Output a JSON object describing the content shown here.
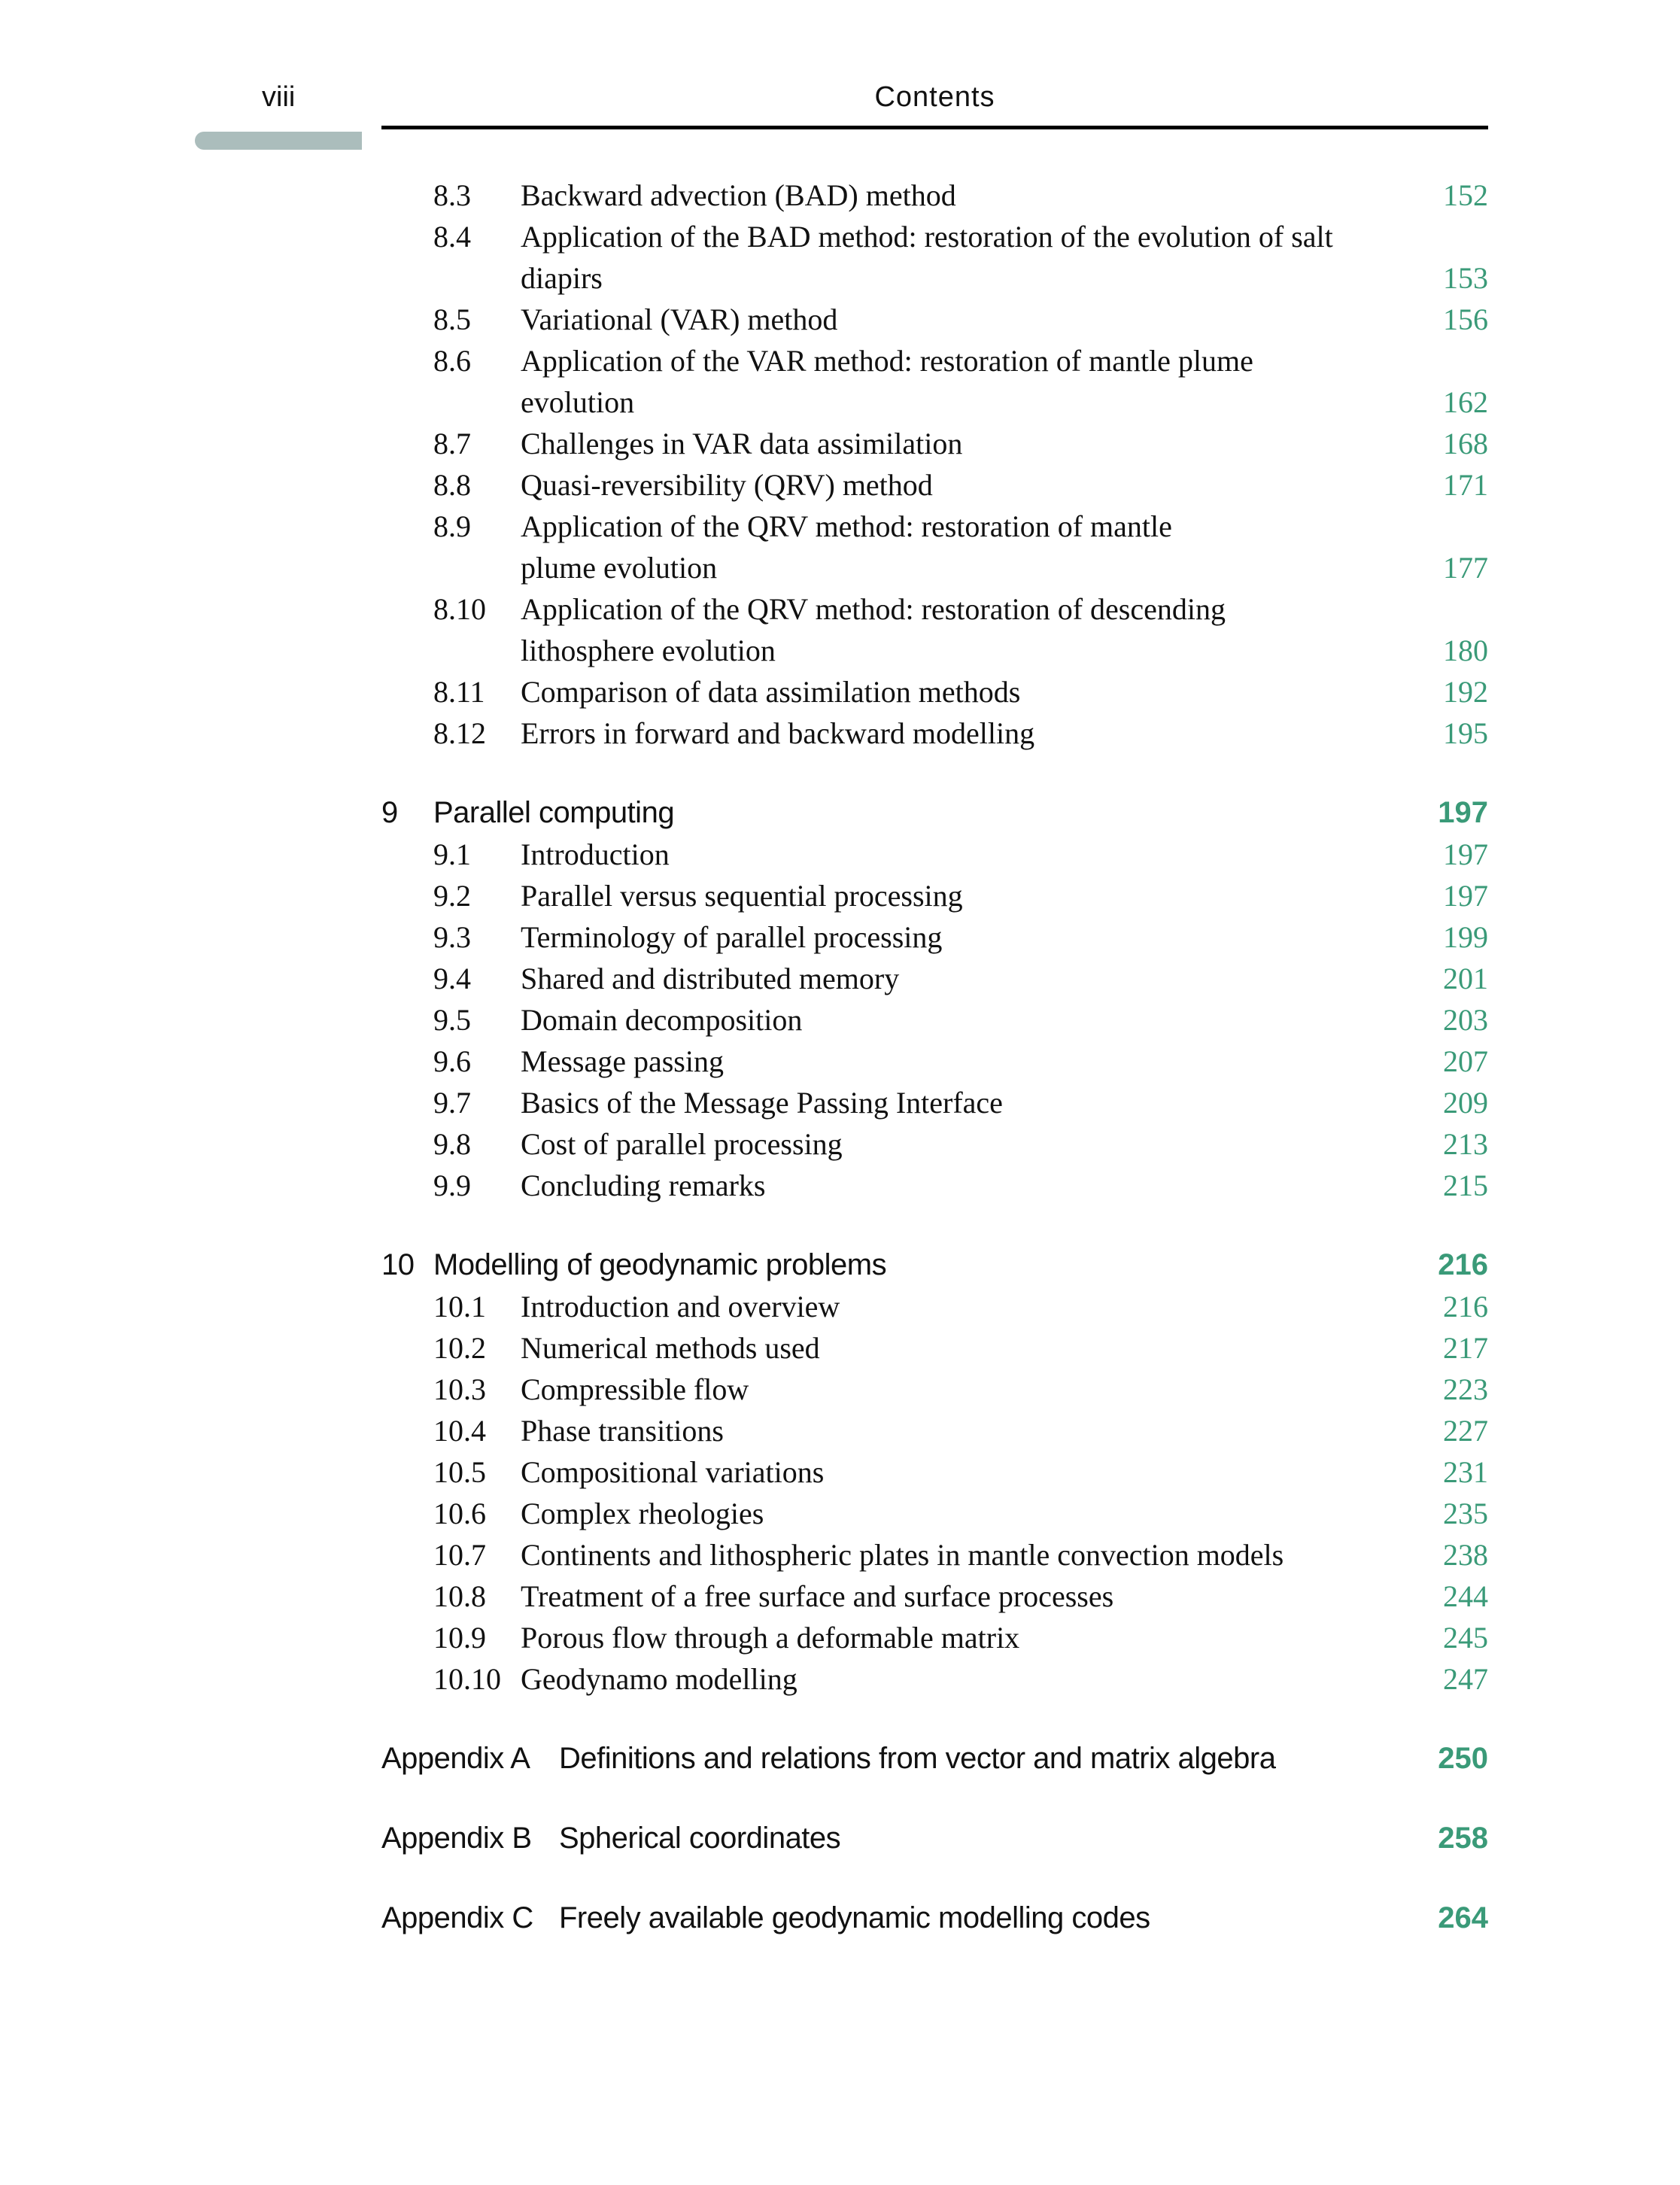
{
  "header": {
    "page_number": "viii",
    "running_title": "Contents"
  },
  "accent_color": "#3a9a78",
  "entries": [
    {
      "kind": "section",
      "number": "8.3",
      "lines": [
        "Backward advection (BAD) method"
      ],
      "page": "152"
    },
    {
      "kind": "section",
      "number": "8.4",
      "lines": [
        "Application of the BAD method: restoration of the evolution of salt",
        "diapirs"
      ],
      "page": "153"
    },
    {
      "kind": "section",
      "number": "8.5",
      "lines": [
        "Variational (VAR) method"
      ],
      "page": "156"
    },
    {
      "kind": "section",
      "number": "8.6",
      "lines": [
        "Application of the VAR method: restoration of mantle plume",
        "evolution"
      ],
      "page": "162"
    },
    {
      "kind": "section",
      "number": "8.7",
      "lines": [
        "Challenges in VAR data assimilation"
      ],
      "page": "168"
    },
    {
      "kind": "section",
      "number": "8.8",
      "lines": [
        "Quasi-reversibility (QRV) method"
      ],
      "page": "171"
    },
    {
      "kind": "section",
      "number": "8.9",
      "lines": [
        "Application of the QRV method: restoration of mantle",
        "plume evolution"
      ],
      "page": "177"
    },
    {
      "kind": "section",
      "number": "8.10",
      "lines": [
        "Application of the QRV method: restoration of descending",
        "lithosphere evolution"
      ],
      "page": "180"
    },
    {
      "kind": "section",
      "number": "8.11",
      "lines": [
        "Comparison of data assimilation methods"
      ],
      "page": "192"
    },
    {
      "kind": "section",
      "number": "8.12",
      "lines": [
        "Errors in forward and backward modelling"
      ],
      "page": "195"
    },
    {
      "kind": "chapter",
      "number": "9",
      "lines": [
        "Parallel computing"
      ],
      "page": "197"
    },
    {
      "kind": "section",
      "number": "9.1",
      "lines": [
        "Introduction"
      ],
      "page": "197"
    },
    {
      "kind": "section",
      "number": "9.2",
      "lines": [
        "Parallel versus sequential processing"
      ],
      "page": "197"
    },
    {
      "kind": "section",
      "number": "9.3",
      "lines": [
        "Terminology of parallel processing"
      ],
      "page": "199"
    },
    {
      "kind": "section",
      "number": "9.4",
      "lines": [
        "Shared and distributed memory"
      ],
      "page": "201"
    },
    {
      "kind": "section",
      "number": "9.5",
      "lines": [
        "Domain decomposition"
      ],
      "page": "203"
    },
    {
      "kind": "section",
      "number": "9.6",
      "lines": [
        "Message passing"
      ],
      "page": "207"
    },
    {
      "kind": "section",
      "number": "9.7",
      "lines": [
        "Basics of the Message Passing Interface"
      ],
      "page": "209"
    },
    {
      "kind": "section",
      "number": "9.8",
      "lines": [
        "Cost of parallel processing"
      ],
      "page": "213"
    },
    {
      "kind": "section",
      "number": "9.9",
      "lines": [
        "Concluding remarks"
      ],
      "page": "215"
    },
    {
      "kind": "chapter",
      "number": "10",
      "lines": [
        "Modelling of geodynamic problems"
      ],
      "page": "216"
    },
    {
      "kind": "section",
      "number": "10.1",
      "lines": [
        "Introduction and overview"
      ],
      "page": "216"
    },
    {
      "kind": "section",
      "number": "10.2",
      "lines": [
        "Numerical methods used"
      ],
      "page": "217"
    },
    {
      "kind": "section",
      "number": "10.3",
      "lines": [
        "Compressible flow"
      ],
      "page": "223"
    },
    {
      "kind": "section",
      "number": "10.4",
      "lines": [
        "Phase transitions"
      ],
      "page": "227"
    },
    {
      "kind": "section",
      "number": "10.5",
      "lines": [
        "Compositional variations"
      ],
      "page": "231"
    },
    {
      "kind": "section",
      "number": "10.6",
      "lines": [
        "Complex rheologies"
      ],
      "page": "235"
    },
    {
      "kind": "section",
      "number": "10.7",
      "lines": [
        "Continents and lithospheric plates in mantle convection models"
      ],
      "page": "238"
    },
    {
      "kind": "section",
      "number": "10.8",
      "lines": [
        "Treatment of a free surface and surface processes"
      ],
      "page": "244"
    },
    {
      "kind": "section",
      "number": "10.9",
      "lines": [
        "Porous flow through a deformable matrix"
      ],
      "page": "245"
    },
    {
      "kind": "section",
      "number": "10.10",
      "lines": [
        "Geodynamo modelling"
      ],
      "page": "247"
    },
    {
      "kind": "appendix",
      "number": "Appendix A",
      "lines": [
        "Definitions and relations from vector and matrix algebra"
      ],
      "page": "250"
    },
    {
      "kind": "appendix",
      "number": "Appendix B",
      "lines": [
        "Spherical coordinates"
      ],
      "page": "258"
    },
    {
      "kind": "appendix",
      "number": "Appendix C",
      "lines": [
        "Freely available geodynamic modelling codes"
      ],
      "page": "264"
    }
  ]
}
